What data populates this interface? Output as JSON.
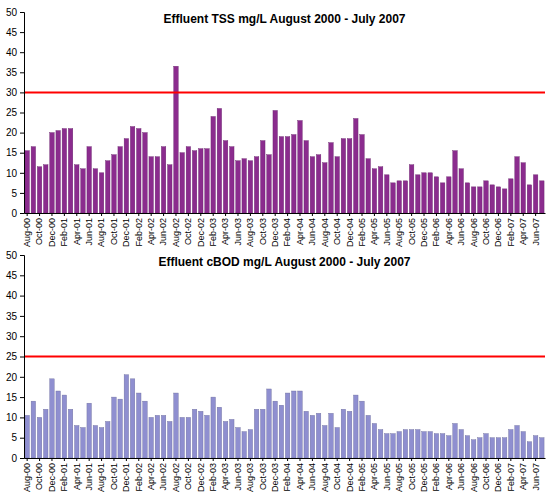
{
  "chart_data": [
    {
      "type": "bar",
      "title": "Effluent TSS mg/L August 2000 - July 2007",
      "categories": [
        "Aug-00",
        null,
        "Oct-00",
        null,
        "Dec-00",
        null,
        "Feb-01",
        null,
        "Apr-01",
        null,
        "Jun-01",
        null,
        "Aug-01",
        null,
        "Oct-01",
        null,
        "Dec-01",
        null,
        "Feb-02",
        null,
        "Apr-02",
        null,
        "Jun-02",
        null,
        "Aug-02",
        null,
        "Oct-02",
        null,
        "Dec-02",
        null,
        "Feb-03",
        null,
        "Apr-03",
        null,
        "Jun-03",
        null,
        "Aug-03",
        null,
        "Oct-03",
        null,
        "Dec-03",
        null,
        "Feb-04",
        null,
        "Apr-04",
        null,
        "Jun-04",
        null,
        "Aug-04",
        null,
        "Oct-04",
        null,
        "Dec-04",
        null,
        "Feb-05",
        null,
        "Apr-05",
        null,
        "Jun-05",
        null,
        "Aug-05",
        null,
        "Oct-05",
        null,
        "Dec-05",
        null,
        "Feb-06",
        null,
        "Apr-06",
        null,
        "Jun-06",
        null,
        "Aug-06",
        null,
        "Oct-06",
        null,
        "Dec-06",
        null,
        "Feb-07",
        null,
        "Apr-07",
        null,
        "Jun-07",
        null
      ],
      "values": [
        15.5,
        16.5,
        11.5,
        12,
        20,
        20.5,
        21,
        21,
        12,
        11,
        16.5,
        11,
        10,
        13,
        14.5,
        16.5,
        18.5,
        21.5,
        21,
        20,
        14,
        14,
        16.5,
        12,
        36.5,
        15,
        16.5,
        15.5,
        16,
        16,
        24,
        26,
        18,
        16.5,
        13,
        13.5,
        13,
        14,
        18,
        14.5,
        25.5,
        19,
        19,
        19.5,
        23,
        18,
        14,
        14.5,
        12.5,
        17.5,
        14,
        18.5,
        18.5,
        23.5,
        19.5,
        13.5,
        11,
        11.5,
        9.5,
        7.5,
        8,
        8,
        12,
        9.5,
        10,
        10,
        9,
        7.5,
        9,
        15.5,
        11,
        7.5,
        6.5,
        6.5,
        8,
        7,
        6.5,
        6,
        8.5,
        14,
        12.5,
        7,
        9.5,
        8
      ],
      "color": "#8b2c8e",
      "limit": 30,
      "ylim": [
        0,
        50
      ],
      "yticks": [
        0,
        5,
        10,
        15,
        20,
        25,
        30,
        35,
        40,
        45,
        50
      ],
      "grid": false
    },
    {
      "type": "bar",
      "title": "Effluent cBOD mg/L August 2000 - July 2007",
      "categories": [
        "Aug-00",
        null,
        "Oct-00",
        null,
        "Dec-00",
        null,
        "Feb-01",
        null,
        "Apr-01",
        null,
        "Jun-01",
        null,
        "Aug-01",
        null,
        "Oct-01",
        null,
        "Dec-01",
        null,
        "Feb-02",
        null,
        "Apr-02",
        null,
        "Jun-02",
        null,
        "Aug-02",
        null,
        "Oct-02",
        null,
        "Dec-02",
        null,
        "Feb-03",
        null,
        "Apr-03",
        null,
        "Jun-03",
        null,
        "Aug-03",
        null,
        "Oct-03",
        null,
        "Dec-03",
        null,
        "Feb-04",
        null,
        "Apr-04",
        null,
        "Jun-04",
        null,
        "Aug-04",
        null,
        "Oct-04",
        null,
        "Dec-04",
        null,
        "Feb-05",
        null,
        "Apr-05",
        null,
        "Jun-05",
        null,
        "Aug-05",
        null,
        "Oct-05",
        null,
        "Dec-05",
        null,
        "Feb-06",
        null,
        "Apr-06",
        null,
        "Jun-06",
        null,
        "Aug-06",
        null,
        "Oct-06",
        null,
        "Dec-06",
        null,
        "Feb-07",
        null,
        "Apr-07",
        null,
        "Jun-07",
        null
      ],
      "values": [
        10.5,
        14,
        10,
        12,
        19.5,
        16.5,
        15.5,
        12,
        8,
        7.5,
        13.5,
        8,
        7.5,
        9,
        15,
        14.5,
        20.5,
        19.5,
        16,
        14,
        10,
        10.5,
        10.5,
        9,
        16,
        10,
        10,
        12,
        11.5,
        10.5,
        15,
        12.5,
        9,
        9.5,
        7.5,
        6.5,
        7,
        12,
        12,
        17,
        14,
        13,
        16,
        16.5,
        16.5,
        11.5,
        10.5,
        11,
        8,
        11,
        7.5,
        12,
        11.5,
        15.5,
        14,
        10.5,
        8.5,
        7,
        6,
        6,
        6.5,
        7,
        7,
        7,
        6.5,
        6.5,
        6,
        6,
        5.5,
        8.5,
        7,
        5.5,
        4.5,
        5,
        6,
        5,
        5,
        5,
        7,
        8,
        6.5,
        4,
        5.5,
        5
      ],
      "color": "#8f8fd0",
      "limit": 25,
      "ylim": [
        0,
        50
      ],
      "yticks": [
        0,
        5,
        10,
        15,
        20,
        25,
        30,
        35,
        40,
        45,
        50
      ],
      "grid": false
    }
  ]
}
